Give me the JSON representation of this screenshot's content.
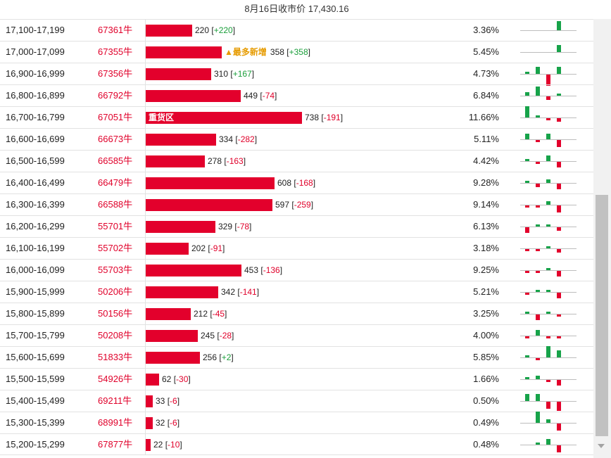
{
  "header": {
    "title": "8月16日收市价 17,430.16"
  },
  "rows": [
    {
      "range": "17,100-17,199",
      "lots": "67361牛",
      "bar_value": 220,
      "bar_label": "",
      "note": "",
      "count": "220",
      "change": "+220",
      "change_dir": "pos",
      "pct": "3.36%",
      "spark": [
        0,
        0,
        0,
        0,
        0,
        0,
        0,
        0,
        0,
        0,
        5
      ]
    },
    {
      "range": "17,000-17,099",
      "lots": "67355牛",
      "bar_value": 358,
      "bar_label": "",
      "note": "▲最多新增",
      "count": "358",
      "change": "+358",
      "change_dir": "pos",
      "pct": "5.45%",
      "spark": [
        0,
        0,
        0,
        0,
        0,
        0,
        0,
        0,
        0,
        0,
        4
      ]
    },
    {
      "range": "16,900-16,999",
      "lots": "67356牛",
      "bar_value": 310,
      "bar_label": "",
      "note": "",
      "count": "310",
      "change": "+167",
      "change_dir": "pos",
      "pct": "4.73%",
      "spark": [
        0,
        0,
        0,
        0,
        0,
        0,
        0,
        1,
        4,
        -6,
        4
      ]
    },
    {
      "range": "16,800-16,899",
      "lots": "66792牛",
      "bar_value": 449,
      "bar_label": "",
      "note": "",
      "count": "449",
      "change": "-74",
      "change_dir": "neg",
      "pct": "6.84%",
      "spark": [
        0,
        0,
        0,
        0,
        0,
        0,
        0,
        2,
        5,
        -2,
        1
      ]
    },
    {
      "range": "16,700-16,799",
      "lots": "67051牛",
      "bar_value": 738,
      "bar_label": "重货区",
      "note": "",
      "count": "738",
      "change": "-191",
      "change_dir": "neg",
      "pct": "11.66%",
      "spark": [
        0,
        0,
        0,
        0,
        0,
        0,
        0,
        6,
        1,
        -1,
        -2
      ]
    },
    {
      "range": "16,600-16,699",
      "lots": "66673牛",
      "bar_value": 334,
      "bar_label": "",
      "note": "",
      "count": "334",
      "change": "-282",
      "change_dir": "neg",
      "pct": "5.11%",
      "spark": [
        0,
        0,
        0,
        0,
        0,
        0,
        0,
        3,
        -1,
        3,
        -4
      ]
    },
    {
      "range": "16,500-16,599",
      "lots": "66585牛",
      "bar_value": 278,
      "bar_label": "",
      "note": "",
      "count": "278",
      "change": "-163",
      "change_dir": "neg",
      "pct": "4.42%",
      "spark": [
        0,
        0,
        0,
        0,
        0,
        0,
        0,
        1,
        -1,
        3,
        -3
      ]
    },
    {
      "range": "16,400-16,499",
      "lots": "66479牛",
      "bar_value": 608,
      "bar_label": "",
      "note": "",
      "count": "608",
      "change": "-168",
      "change_dir": "neg",
      "pct": "9.28%",
      "spark": [
        0,
        0,
        0,
        0,
        0,
        0,
        0,
        1,
        -2,
        2,
        -3
      ]
    },
    {
      "range": "16,300-16,399",
      "lots": "66588牛",
      "bar_value": 597,
      "bar_label": "",
      "note": "",
      "count": "597",
      "change": "-259",
      "change_dir": "neg",
      "pct": "9.14%",
      "spark": [
        0,
        0,
        0,
        0,
        0,
        0,
        0,
        -1,
        -1,
        2,
        -4
      ]
    },
    {
      "range": "16,200-16,299",
      "lots": "55701牛",
      "bar_value": 329,
      "bar_label": "",
      "note": "",
      "count": "329",
      "change": "-78",
      "change_dir": "neg",
      "pct": "6.13%",
      "spark": [
        0,
        0,
        0,
        0,
        0,
        0,
        0,
        -3,
        1,
        1,
        -2
      ]
    },
    {
      "range": "16,100-16,199",
      "lots": "55702牛",
      "bar_value": 202,
      "bar_label": "",
      "note": "",
      "count": "202",
      "change": "-91",
      "change_dir": "neg",
      "pct": "3.18%",
      "spark": [
        0,
        0,
        0,
        0,
        0,
        0,
        0,
        -1,
        -1,
        1,
        -2
      ]
    },
    {
      "range": "16,000-16,099",
      "lots": "55703牛",
      "bar_value": 453,
      "bar_label": "",
      "note": "",
      "count": "453",
      "change": "-136",
      "change_dir": "neg",
      "pct": "9.25%",
      "spark": [
        0,
        0,
        0,
        0,
        0,
        0,
        0,
        -1,
        -1,
        1,
        -3
      ]
    },
    {
      "range": "15,900-15,999",
      "lots": "50206牛",
      "bar_value": 342,
      "bar_label": "",
      "note": "",
      "count": "342",
      "change": "-141",
      "change_dir": "neg",
      "pct": "5.21%",
      "spark": [
        0,
        0,
        0,
        0,
        0,
        0,
        0,
        -1,
        1,
        1,
        -3
      ]
    },
    {
      "range": "15,800-15,899",
      "lots": "50156牛",
      "bar_value": 212,
      "bar_label": "",
      "note": "",
      "count": "212",
      "change": "-45",
      "change_dir": "neg",
      "pct": "3.25%",
      "spark": [
        0,
        0,
        0,
        0,
        0,
        0,
        0,
        1,
        -3,
        1,
        -1
      ]
    },
    {
      "range": "15,700-15,799",
      "lots": "50208牛",
      "bar_value": 245,
      "bar_label": "",
      "note": "",
      "count": "245",
      "change": "-28",
      "change_dir": "neg",
      "pct": "4.00%",
      "spark": [
        0,
        0,
        0,
        0,
        0,
        0,
        0,
        -1,
        3,
        -1,
        -1
      ]
    },
    {
      "range": "15,600-15,699",
      "lots": "51833牛",
      "bar_value": 256,
      "bar_label": "",
      "note": "",
      "count": "256",
      "change": "+2",
      "change_dir": "pos",
      "pct": "5.85%",
      "spark": [
        0,
        0,
        0,
        0,
        0,
        0,
        0,
        1,
        -1,
        6,
        4
      ]
    },
    {
      "range": "15,500-15,599",
      "lots": "54926牛",
      "bar_value": 62,
      "bar_label": "",
      "note": "",
      "count": "62",
      "change": "-30",
      "change_dir": "neg",
      "pct": "1.66%",
      "spark": [
        0,
        0,
        0,
        0,
        0,
        0,
        0,
        1,
        2,
        -1,
        -3
      ]
    },
    {
      "range": "15,400-15,499",
      "lots": "69211牛",
      "bar_value": 33,
      "bar_label": "",
      "note": "",
      "count": "33",
      "change": "-6",
      "change_dir": "neg",
      "pct": "0.50%",
      "spark": [
        0,
        0,
        0,
        0,
        0,
        0,
        0,
        4,
        4,
        -4,
        -5
      ]
    },
    {
      "range": "15,300-15,399",
      "lots": "68991牛",
      "bar_value": 32,
      "bar_label": "",
      "note": "",
      "count": "32",
      "change": "-6",
      "change_dir": "neg",
      "pct": "0.49%",
      "spark": [
        0,
        0,
        0,
        0,
        0,
        0,
        0,
        0,
        6,
        2,
        -4
      ]
    },
    {
      "range": "15,200-15,299",
      "lots": "67877牛",
      "bar_value": 22,
      "bar_label": "",
      "note": "",
      "count": "22",
      "change": "-10",
      "change_dir": "neg",
      "pct": "0.48%",
      "spark": [
        0,
        0,
        0,
        0,
        0,
        0,
        0,
        0,
        1,
        3,
        -4
      ]
    }
  ],
  "colors": {
    "bar": "#e3002c",
    "positive": "#1a9e3a",
    "negative": "#e0002a",
    "note": "#e69b00"
  }
}
